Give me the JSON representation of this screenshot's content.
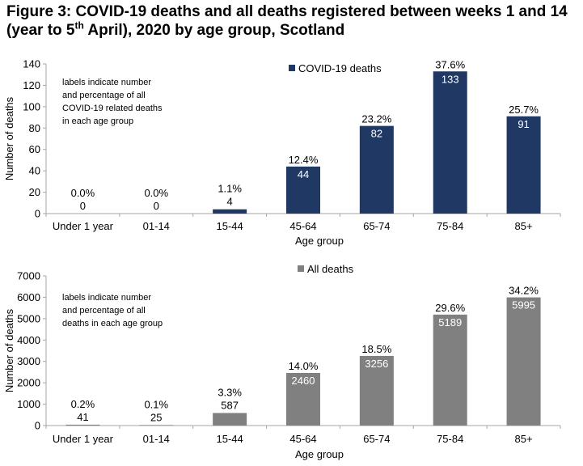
{
  "figure": {
    "title_part1": "Figure 3: COVID-19 deaths and all deaths registered between weeks 1 and 14 (year to 5",
    "title_sup": "th",
    "title_part2": " April), 2020 by age group, Scotland"
  },
  "colors": {
    "covid": "#1f3864",
    "all": "#808080",
    "axis": "#a6a6a6"
  },
  "chart_data": [
    {
      "type": "bar",
      "categories": [
        "Under 1 year",
        "01-14",
        "15-44",
        "45-64",
        "65-74",
        "75-84",
        "85+"
      ],
      "series": [
        {
          "name": "COVID-19 deaths",
          "values": [
            0,
            0,
            4,
            44,
            82,
            133,
            91
          ],
          "percent_labels": [
            "0.0%",
            "0.0%",
            "1.1%",
            "12.4%",
            "23.2%",
            "37.6%",
            "25.7%"
          ]
        }
      ],
      "xlabel": "Age group",
      "ylabel": "Number of deaths",
      "ylim": [
        0,
        140
      ],
      "yticks": [
        0,
        20,
        40,
        60,
        80,
        100,
        120,
        140
      ],
      "annotation": [
        "labels indicate number",
        "and percentage of all",
        "COVID-19 related deaths",
        "in each age group"
      ],
      "legend_position": "top-center",
      "grid": false
    },
    {
      "type": "bar",
      "categories": [
        "Under 1 year",
        "01-14",
        "15-44",
        "45-64",
        "65-74",
        "75-84",
        "85+"
      ],
      "series": [
        {
          "name": "All deaths",
          "values": [
            41,
            25,
            587,
            2460,
            3256,
            5189,
            5995
          ],
          "percent_labels": [
            "0.2%",
            "0.1%",
            "3.3%",
            "14.0%",
            "18.5%",
            "29.6%",
            "34.2%"
          ]
        }
      ],
      "xlabel": "Age group",
      "ylabel": "Number of deaths",
      "ylim": [
        0,
        7000
      ],
      "yticks": [
        0,
        1000,
        2000,
        3000,
        4000,
        5000,
        6000,
        7000
      ],
      "annotation": [
        "labels indicate number",
        "and percentage of all",
        "deaths in each age group"
      ],
      "legend_position": "top-center",
      "grid": false
    }
  ]
}
